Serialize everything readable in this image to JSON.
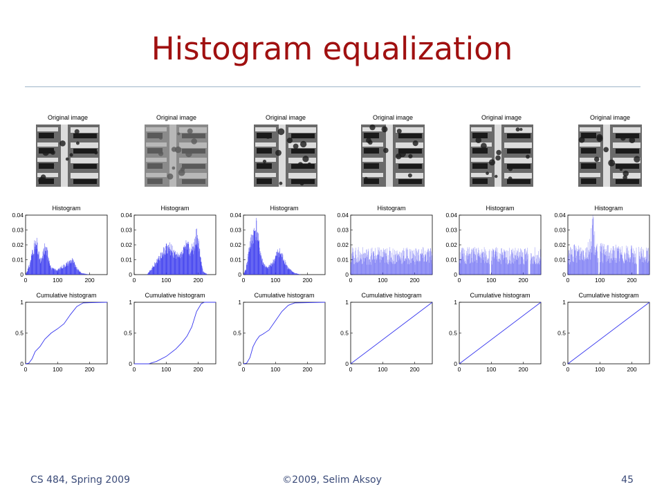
{
  "slide": {
    "title": "Histogram equalization",
    "footer_left": "CS 484, Spring 2009",
    "footer_center": "©2009, Selim Aksoy",
    "footer_right": "45"
  },
  "colors": {
    "title": "#a01010",
    "footer": "#3a4a78",
    "plot": "#3333ee",
    "rule": "#9db4c8"
  },
  "chart_data": [
    {
      "type": "bar",
      "column": 1,
      "image_title": "Original image",
      "title": "Histogram",
      "xlim": [
        0,
        255
      ],
      "ylim": [
        0,
        0.04
      ],
      "xticks": [
        0,
        100,
        200
      ],
      "yticks": [
        0,
        0.01,
        0.02,
        0.03,
        0.04
      ],
      "profile": [
        [
          0,
          0
        ],
        [
          12,
          0.006
        ],
        [
          25,
          0.018
        ],
        [
          35,
          0.02
        ],
        [
          40,
          0.014
        ],
        [
          48,
          0.008
        ],
        [
          60,
          0.018
        ],
        [
          70,
          0.014
        ],
        [
          80,
          0.004
        ],
        [
          100,
          0.003
        ],
        [
          120,
          0.006
        ],
        [
          135,
          0.008
        ],
        [
          145,
          0.01
        ],
        [
          160,
          0.004
        ],
        [
          175,
          0.001
        ],
        [
          200,
          0.0
        ],
        [
          255,
          0
        ]
      ]
    },
    {
      "type": "line",
      "column": 1,
      "title": "Cumulative histogram",
      "xlim": [
        0,
        255
      ],
      "ylim": [
        0,
        1
      ],
      "xticks": [
        0,
        100,
        200
      ],
      "yticks": [
        0,
        0.5,
        1
      ],
      "points": [
        [
          0,
          0
        ],
        [
          10,
          0.01
        ],
        [
          20,
          0.08
        ],
        [
          30,
          0.2
        ],
        [
          45,
          0.28
        ],
        [
          60,
          0.4
        ],
        [
          80,
          0.5
        ],
        [
          100,
          0.57
        ],
        [
          120,
          0.65
        ],
        [
          140,
          0.8
        ],
        [
          160,
          0.93
        ],
        [
          180,
          0.99
        ],
        [
          255,
          1
        ]
      ]
    },
    {
      "type": "bar",
      "column": 2,
      "image_title": "Original image",
      "title": "Histogram",
      "xlim": [
        0,
        255
      ],
      "ylim": [
        0,
        0.04
      ],
      "xticks": [
        0,
        100,
        200
      ],
      "yticks": [
        0,
        0.01,
        0.02,
        0.03,
        0.04
      ],
      "profile": [
        [
          0,
          0
        ],
        [
          40,
          0
        ],
        [
          55,
          0.004
        ],
        [
          75,
          0.01
        ],
        [
          95,
          0.016
        ],
        [
          110,
          0.018
        ],
        [
          125,
          0.014
        ],
        [
          140,
          0.011
        ],
        [
          155,
          0.016
        ],
        [
          165,
          0.02
        ],
        [
          175,
          0.016
        ],
        [
          185,
          0.018
        ],
        [
          195,
          0.026
        ],
        [
          205,
          0.015
        ],
        [
          215,
          0.002
        ],
        [
          230,
          0
        ],
        [
          255,
          0
        ]
      ]
    },
    {
      "type": "line",
      "column": 2,
      "title": "Cumulative histogram",
      "xlim": [
        0,
        255
      ],
      "ylim": [
        0,
        1
      ],
      "xticks": [
        0,
        100,
        200
      ],
      "yticks": [
        0,
        0.5,
        1
      ],
      "points": [
        [
          0,
          0
        ],
        [
          45,
          0
        ],
        [
          70,
          0.04
        ],
        [
          100,
          0.12
        ],
        [
          130,
          0.24
        ],
        [
          150,
          0.35
        ],
        [
          165,
          0.45
        ],
        [
          180,
          0.6
        ],
        [
          195,
          0.85
        ],
        [
          210,
          0.98
        ],
        [
          220,
          1
        ],
        [
          255,
          1
        ]
      ]
    },
    {
      "type": "bar",
      "column": 3,
      "image_title": "Original image",
      "title": "Histogram",
      "xlim": [
        0,
        255
      ],
      "ylim": [
        0,
        0.04
      ],
      "xticks": [
        0,
        100,
        200
      ],
      "yticks": [
        0,
        0.01,
        0.02,
        0.03,
        0.04
      ],
      "profile": [
        [
          0,
          0
        ],
        [
          8,
          0.004
        ],
        [
          20,
          0.02
        ],
        [
          30,
          0.026
        ],
        [
          40,
          0.032
        ],
        [
          50,
          0.018
        ],
        [
          60,
          0.008
        ],
        [
          75,
          0.004
        ],
        [
          95,
          0.009
        ],
        [
          110,
          0.016
        ],
        [
          125,
          0.011
        ],
        [
          140,
          0.004
        ],
        [
          160,
          0.001
        ],
        [
          180,
          0.0
        ],
        [
          255,
          0
        ]
      ]
    },
    {
      "type": "line",
      "column": 3,
      "title": "Cumulative histogram",
      "xlim": [
        0,
        255
      ],
      "ylim": [
        0,
        1
      ],
      "xticks": [
        0,
        100,
        200
      ],
      "yticks": [
        0,
        0.5,
        1
      ],
      "points": [
        [
          0,
          0
        ],
        [
          10,
          0.01
        ],
        [
          20,
          0.1
        ],
        [
          30,
          0.28
        ],
        [
          40,
          0.38
        ],
        [
          50,
          0.45
        ],
        [
          60,
          0.48
        ],
        [
          80,
          0.55
        ],
        [
          100,
          0.7
        ],
        [
          120,
          0.85
        ],
        [
          140,
          0.95
        ],
        [
          160,
          0.99
        ],
        [
          255,
          1
        ]
      ]
    },
    {
      "type": "bar",
      "column": 4,
      "image_title": "Original image",
      "title": "Histogram",
      "xlim": [
        0,
        255
      ],
      "ylim": [
        0,
        0.04
      ],
      "xticks": [
        0,
        100,
        200
      ],
      "yticks": [
        0,
        0.01,
        0.02,
        0.03,
        0.04
      ],
      "profile": [
        [
          0,
          0.012
        ],
        [
          255,
          0.012
        ]
      ]
    },
    {
      "type": "line",
      "column": 4,
      "title": "Cumulative histogram",
      "xlim": [
        0,
        255
      ],
      "ylim": [
        0,
        1
      ],
      "xticks": [
        0,
        100,
        200
      ],
      "yticks": [
        0,
        0.5,
        1
      ],
      "points": [
        [
          0,
          0
        ],
        [
          255,
          1
        ]
      ]
    },
    {
      "type": "bar",
      "column": 5,
      "image_title": "Original image",
      "title": "Histogram",
      "xlim": [
        0,
        255
      ],
      "ylim": [
        0,
        0.04
      ],
      "xticks": [
        0,
        100,
        200
      ],
      "yticks": [
        0,
        0.01,
        0.02,
        0.03,
        0.04
      ],
      "profile": [
        [
          0,
          0.012
        ],
        [
          255,
          0.012
        ]
      ]
    },
    {
      "type": "line",
      "column": 5,
      "title": "Cumulative histogram",
      "xlim": [
        0,
        255
      ],
      "ylim": [
        0,
        1
      ],
      "xticks": [
        0,
        100,
        200
      ],
      "yticks": [
        0,
        0.5,
        1
      ],
      "points": [
        [
          0,
          0
        ],
        [
          255,
          1
        ]
      ]
    },
    {
      "type": "bar",
      "column": 6,
      "image_title": "Original image",
      "title": "Histogram",
      "xlim": [
        0,
        255
      ],
      "ylim": [
        0,
        0.04
      ],
      "xticks": [
        0,
        100,
        200
      ],
      "yticks": [
        0,
        0.01,
        0.02,
        0.03,
        0.04
      ],
      "profile": [
        [
          0,
          0.012
        ],
        [
          70,
          0.016
        ],
        [
          78,
          0.034
        ],
        [
          86,
          0.014
        ],
        [
          255,
          0.012
        ]
      ]
    },
    {
      "type": "line",
      "column": 6,
      "title": "Cumulative histogram",
      "xlim": [
        0,
        255
      ],
      "ylim": [
        0,
        1
      ],
      "xticks": [
        0,
        100,
        200
      ],
      "yticks": [
        0,
        0.5,
        1
      ],
      "points": [
        [
          0,
          0
        ],
        [
          255,
          1
        ]
      ]
    }
  ]
}
